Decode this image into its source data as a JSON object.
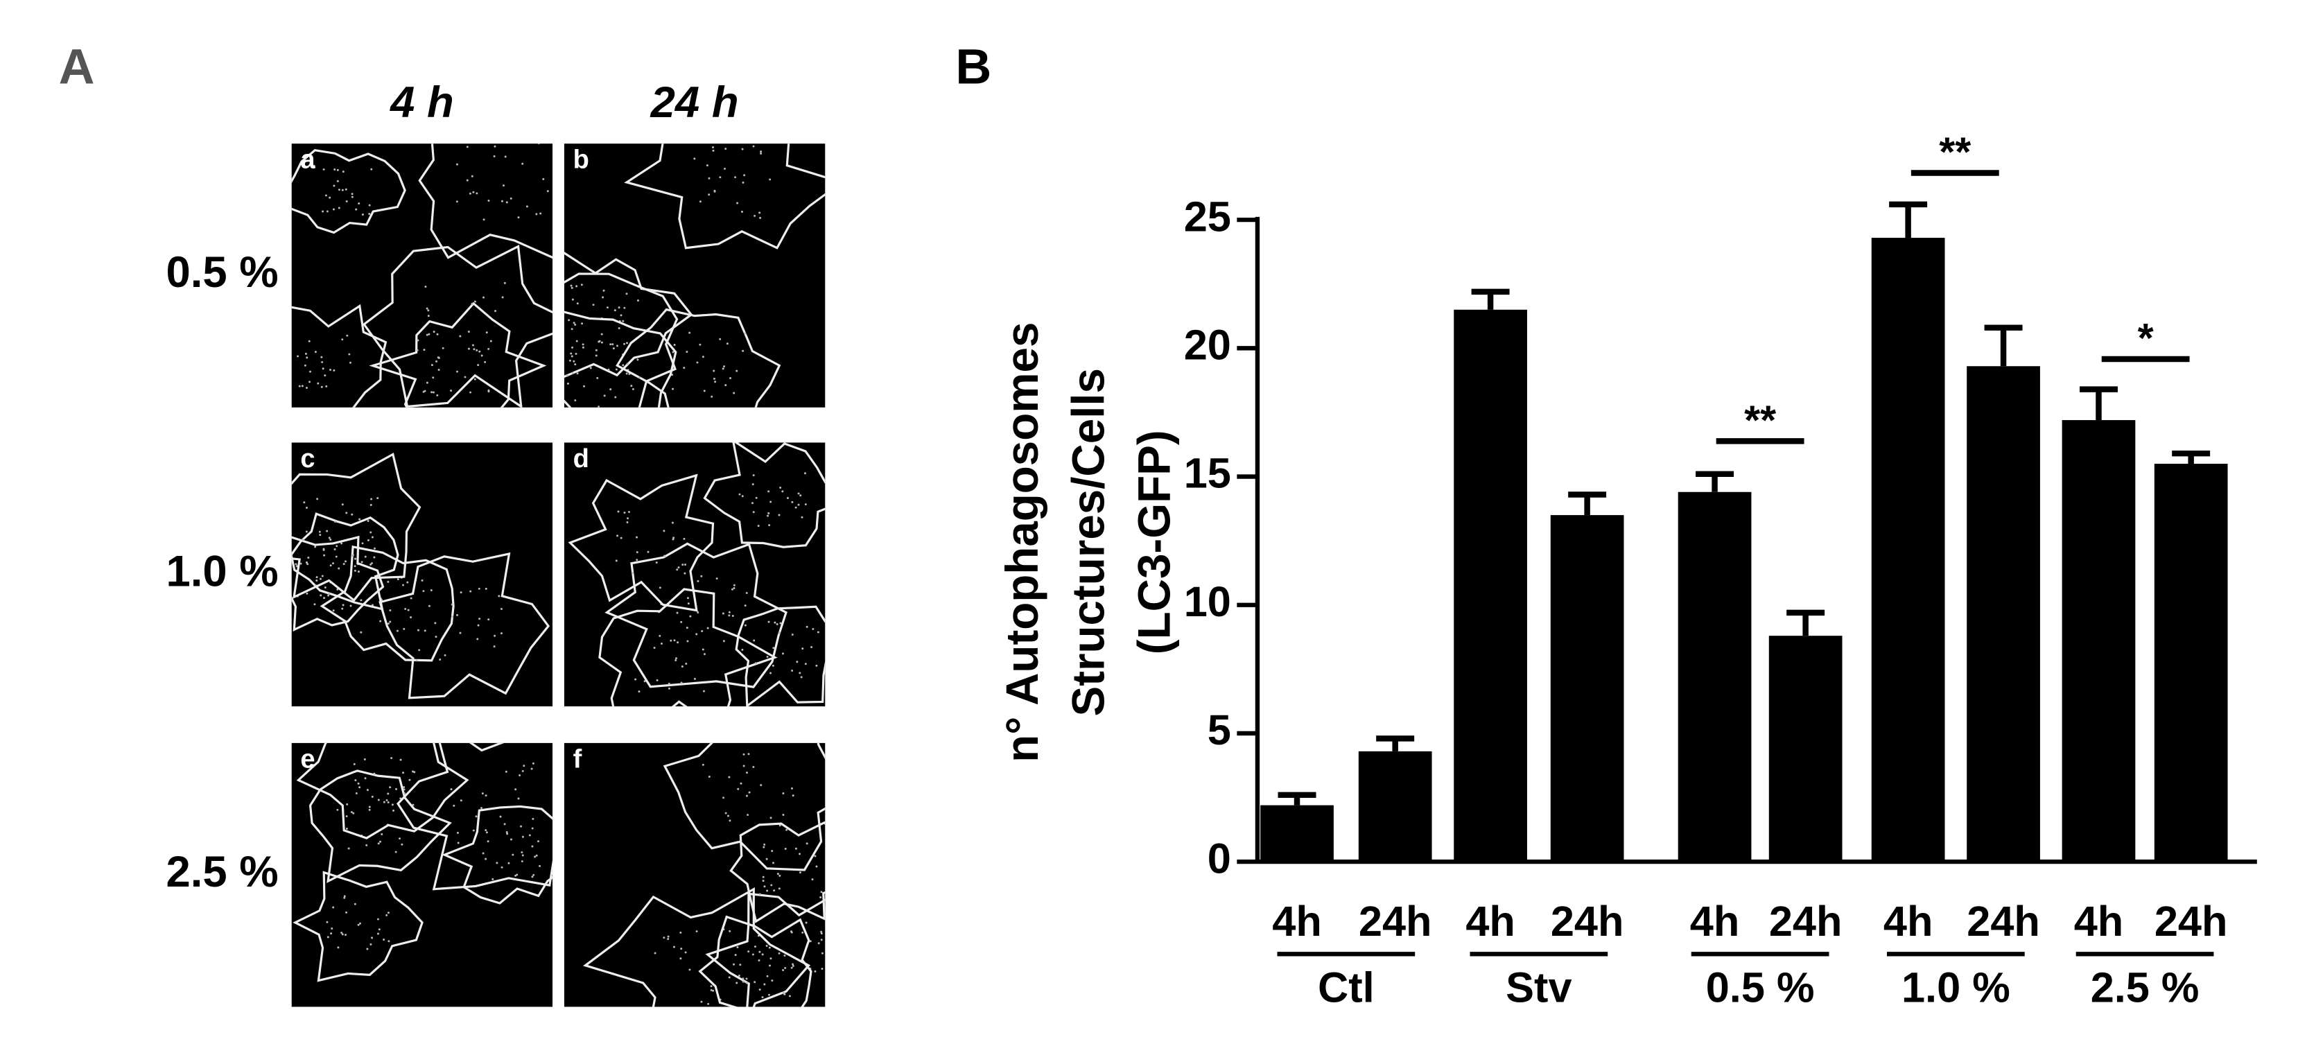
{
  "panel_a": {
    "label": "A",
    "columns": [
      "4 h",
      "24 h"
    ],
    "rows": [
      "0.5 %",
      "1.0 %",
      "2.5 %"
    ],
    "image_labels": [
      "a",
      "b",
      "c",
      "d",
      "e",
      "f"
    ]
  },
  "chart_data": {
    "type": "bar",
    "label": "B",
    "y_label": [
      "n° Autophagosomes",
      "Structures/Cells",
      "(LC3-GFP)"
    ],
    "categories": [
      "4h",
      "24h",
      "4h",
      "24h",
      "4h",
      "24h",
      "4h",
      "24h",
      "4h",
      "24h"
    ],
    "groups": [
      "Ctl",
      "Stv",
      "0.5 %",
      "1.0 %",
      "2.5 %"
    ],
    "values": [
      2.2,
      4.3,
      21.5,
      13.5,
      14.4,
      8.8,
      24.3,
      19.3,
      17.2,
      15.5
    ],
    "errors": [
      0.4,
      0.5,
      0.7,
      0.8,
      0.7,
      0.9,
      1.3,
      1.5,
      1.2,
      0.4
    ],
    "color": "#000000",
    "ylim": [
      0,
      25
    ],
    "yticks": [
      0,
      5,
      10,
      15,
      20,
      25
    ],
    "annotations": [
      "**",
      "**",
      "*"
    ]
  }
}
